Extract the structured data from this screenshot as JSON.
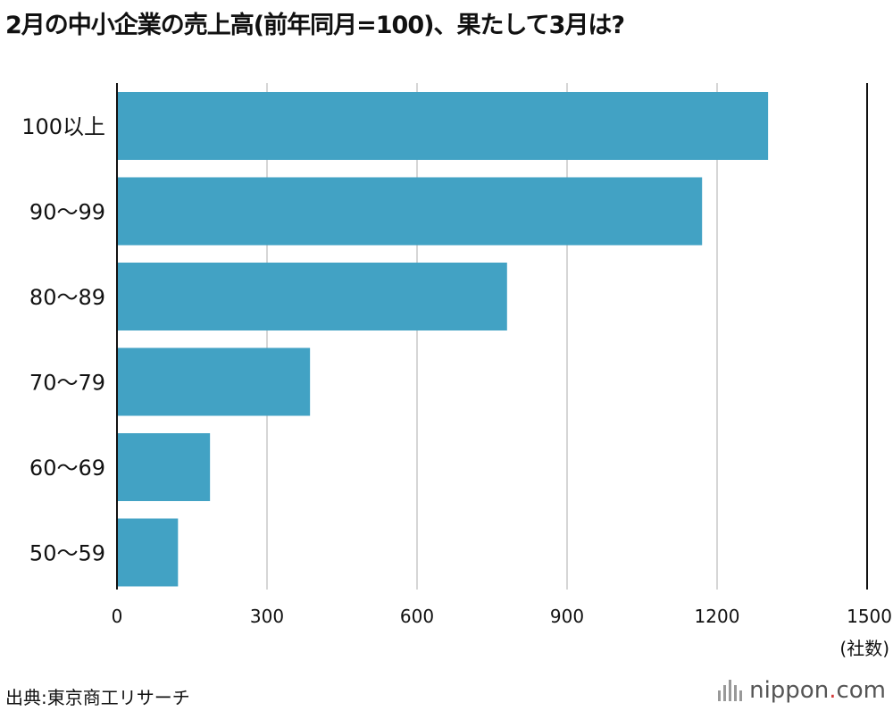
{
  "chart_data": {
    "type": "bar",
    "orientation": "horizontal",
    "title": "2月の中小企業の売上高(前年同月=100)、果たして3月は?",
    "categories": [
      "100以上",
      "90〜99",
      "80〜89",
      "70〜79",
      "60〜69",
      "50〜59"
    ],
    "values": [
      1302,
      1170,
      780,
      386,
      186,
      122
    ],
    "xlim": [
      0,
      1500
    ],
    "xticks": [
      "0",
      "300",
      "600",
      "900",
      "1200",
      "1500"
    ],
    "xlabel": "(社数)",
    "ylabel": "",
    "grid": true,
    "bar_color": "#42a2c4",
    "grid_color": "#c8c8c8",
    "axis_color": "#111111"
  },
  "source": "出典:東京商工リサーチ",
  "brand": {
    "name": "nippon",
    "dot": ".",
    "suffix": "com",
    "dot_color": "#d33a3a"
  }
}
